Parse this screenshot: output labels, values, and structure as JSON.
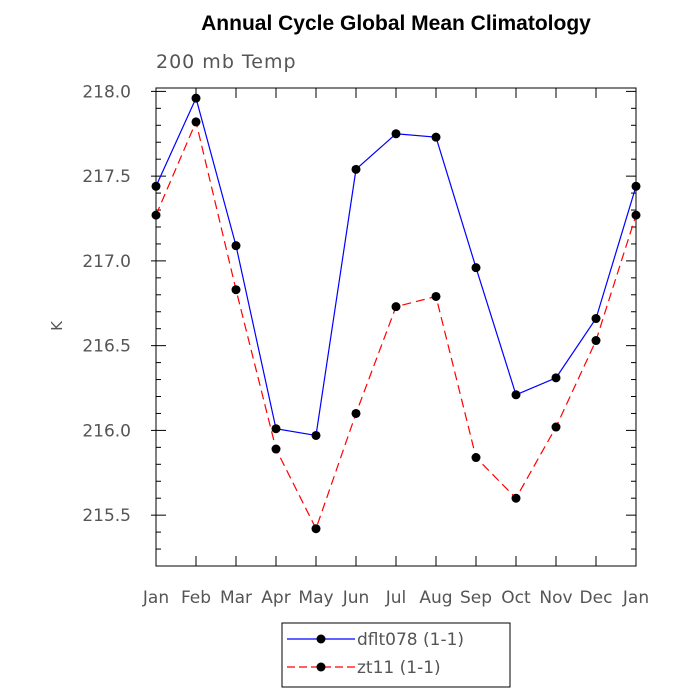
{
  "chart_data": {
    "type": "line",
    "title": "Annual Cycle Global Mean Climatology",
    "subtitle": "200 mb Temp",
    "ylabel": "K",
    "xlabel": "",
    "categories": [
      "Jan",
      "Feb",
      "Mar",
      "Apr",
      "May",
      "Jun",
      "Jul",
      "Aug",
      "Sep",
      "Oct",
      "Nov",
      "Dec",
      "Jan"
    ],
    "ylim": [
      215.2,
      218.02
    ],
    "yticks": [
      215.5,
      216.0,
      216.5,
      217.0,
      217.5,
      218.0
    ],
    "ytick_labels": [
      "215.5",
      "216.0",
      "216.5",
      "217.0",
      "217.5",
      "218.0"
    ],
    "grid": false,
    "legend_position": "bottom",
    "series": [
      {
        "name": "dflt078 (1-1)",
        "color": "#0000ff",
        "line_style": "solid",
        "marker": "filled-circle",
        "values": [
          217.44,
          217.96,
          217.09,
          216.01,
          215.97,
          217.54,
          217.75,
          217.73,
          216.96,
          216.21,
          216.31,
          216.66,
          217.44
        ]
      },
      {
        "name": "zt11 (1-1)",
        "color": "#ff0000",
        "line_style": "dashed",
        "marker": "filled-circle",
        "values": [
          217.27,
          217.82,
          216.83,
          215.89,
          215.42,
          216.1,
          216.73,
          216.79,
          215.84,
          215.6,
          216.02,
          216.53,
          217.27
        ]
      }
    ]
  }
}
